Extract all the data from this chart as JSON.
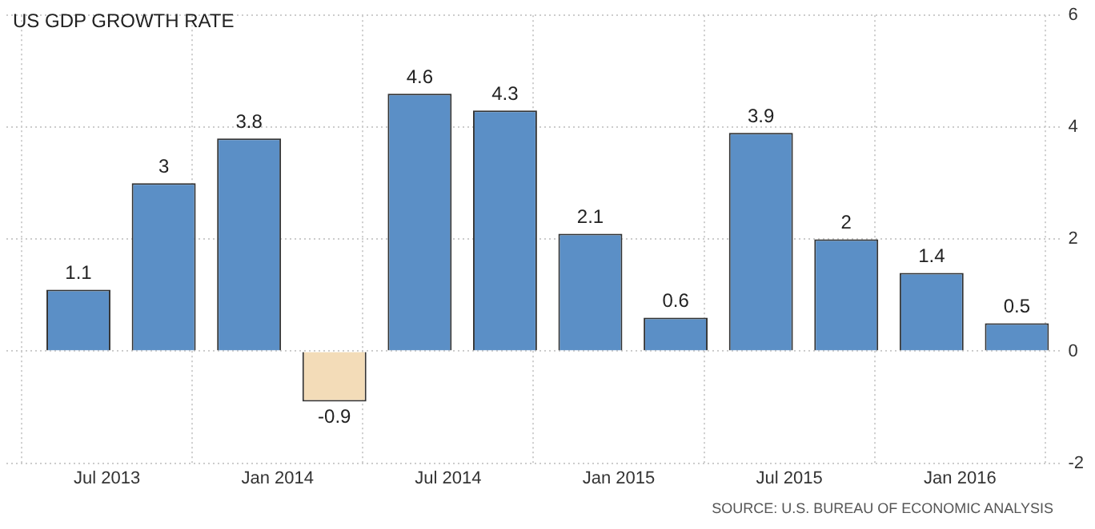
{
  "chart_data": {
    "type": "bar",
    "title": "US GDP GROWTH RATE",
    "x": [
      "2013-06",
      "2013-09",
      "2013-12",
      "2014-03",
      "2014-06",
      "2014-09",
      "2014-12",
      "2015-03",
      "2015-06",
      "2015-09",
      "2015-12",
      "2016-03"
    ],
    "values": [
      1.1,
      3,
      3.8,
      -0.9,
      4.6,
      4.3,
      2.1,
      0.6,
      3.9,
      2,
      1.4,
      0.5
    ],
    "colors": [
      "#5b8fc6",
      "#5b8fc6",
      "#5b8fc6",
      "#f3dcb8",
      "#5b8fc6",
      "#5b8fc6",
      "#5b8fc6",
      "#5b8fc6",
      "#5b8fc6",
      "#5b8fc6",
      "#5b8fc6",
      "#5b8fc6"
    ],
    "xlim": [
      "2013-03-15",
      "2016-04-20"
    ],
    "xticks": [
      {
        "value": "2013-07",
        "label": "Jul 2013"
      },
      {
        "value": "2014-01",
        "label": "Jan 2014"
      },
      {
        "value": "2014-07",
        "label": "Jul 2014"
      },
      {
        "value": "2015-01",
        "label": "Jan 2015"
      },
      {
        "value": "2015-07",
        "label": "Jul 2015"
      },
      {
        "value": "2016-01",
        "label": "Jan 2016"
      }
    ],
    "ylim": [
      -2,
      6
    ],
    "yticks": [
      -2,
      0,
      2,
      4,
      6
    ],
    "grid": true,
    "legend": false,
    "data_labels": true,
    "annotations": [
      "SOURCE: U.S. BUREAU OF ECONOMIC ANALYSIS"
    ]
  }
}
